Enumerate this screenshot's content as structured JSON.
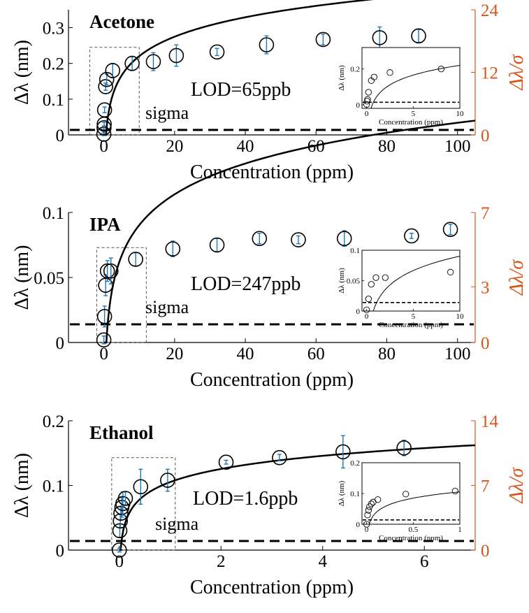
{
  "colors": {
    "axis": "#000000",
    "right_axis": "#d95319",
    "errorbar": "#1f77b4",
    "fit": "#000000"
  },
  "chart_data": [
    {
      "type": "scatter",
      "title": "Acetone",
      "lod_label": "LOD=65ppb",
      "sigma_label": "sigma",
      "xlabel": "Concentration (ppm)",
      "ylabel": "Δλ (nm)",
      "ylabel_right": "Δλ/σ",
      "xlim": [
        -10,
        105
      ],
      "ylim": [
        0,
        0.35
      ],
      "xticks": [
        0,
        20,
        40,
        60,
        80,
        100
      ],
      "xtick_labels": [
        "0",
        "20",
        "40",
        "60",
        "80",
        "100"
      ],
      "yticks": [
        0,
        0.1,
        0.2,
        0.3
      ],
      "ytick_labels": [
        "0",
        "0.1",
        "0.2",
        "0.3"
      ],
      "right_ylim": [
        0,
        24
      ],
      "right_yticks": [
        0,
        12,
        24
      ],
      "right_ytick_labels": [
        "0",
        "12",
        "24"
      ],
      "sigma_level": 0.014,
      "dashed_box": {
        "x": [
          -4,
          10
        ],
        "y": [
          0,
          0.245
        ]
      },
      "fit": {
        "a": 0.0785,
        "b": 0.0395
      },
      "points": [
        {
          "x": 0,
          "y": 0.002,
          "err": 0.004
        },
        {
          "x": 0.05,
          "y": 0.02,
          "err": 0.005
        },
        {
          "x": 0.1,
          "y": 0.03,
          "err": 0.005
        },
        {
          "x": 0.2,
          "y": 0.07,
          "err": 0.008
        },
        {
          "x": 0.5,
          "y": 0.135,
          "err": 0.01
        },
        {
          "x": 0.8,
          "y": 0.155,
          "err": 0.015
        },
        {
          "x": 2.5,
          "y": 0.18,
          "err": 0.02
        },
        {
          "x": 8,
          "y": 0.2,
          "err": 0.02
        },
        {
          "x": 14,
          "y": 0.205,
          "err": 0.025
        },
        {
          "x": 20.5,
          "y": 0.222,
          "err": 0.03
        },
        {
          "x": 32,
          "y": 0.232,
          "err": 0.01
        },
        {
          "x": 46,
          "y": 0.252,
          "err": 0.025
        },
        {
          "x": 62,
          "y": 0.267,
          "err": 0.015
        },
        {
          "x": 78,
          "y": 0.272,
          "err": 0.03
        },
        {
          "x": 89,
          "y": 0.277,
          "err": 0.018
        }
      ],
      "inset": {
        "xlabel": "Concentration (ppm)",
        "ylabel": "Δλ (nm)",
        "xlim": [
          -0.5,
          10
        ],
        "ylim": [
          -0.02,
          0.32
        ],
        "xticks": [
          0,
          5,
          10
        ],
        "xtick_labels": [
          "0",
          "5",
          "10"
        ],
        "yticks": [
          0,
          0.2
        ],
        "ytick_labels": [
          "0",
          "0.2"
        ],
        "sigma_level": 0.014,
        "fit": {
          "a": 0.0785,
          "b": 0.0395
        },
        "points": [
          {
            "x": 0,
            "y": 0.002
          },
          {
            "x": 0.05,
            "y": 0.02
          },
          {
            "x": 0.1,
            "y": 0.03
          },
          {
            "x": 0.2,
            "y": 0.07
          },
          {
            "x": 0.5,
            "y": 0.135
          },
          {
            "x": 0.8,
            "y": 0.155
          },
          {
            "x": 2.5,
            "y": 0.18
          },
          {
            "x": 8,
            "y": 0.2
          }
        ]
      }
    },
    {
      "type": "scatter",
      "title": "IPA",
      "lod_label": "LOD=247ppb",
      "sigma_label": "sigma",
      "xlabel": "Concentration (ppm)",
      "ylabel": "Δλ (nm)",
      "ylabel_right": "Δλ/σ",
      "xlim": [
        -10,
        105
      ],
      "ylim": [
        0,
        0.1
      ],
      "xticks": [
        0,
        20,
        40,
        60,
        80,
        100
      ],
      "xtick_labels": [
        "0",
        "20",
        "40",
        "60",
        "80",
        "100"
      ],
      "yticks": [
        0,
        0.05,
        0.1
      ],
      "ytick_labels": [
        "0",
        "0.05",
        "0.1"
      ],
      "right_ylim": [
        0,
        7
      ],
      "right_yticks": [
        0,
        3,
        7
      ],
      "right_ytick_labels": [
        "0",
        "3",
        "7"
      ],
      "sigma_level": 0.014,
      "dashed_box": {
        "x": [
          -2,
          12
        ],
        "y": [
          0,
          0.073
        ]
      },
      "fit": {
        "a": 0.0342,
        "b": 0.0115
      },
      "points": [
        {
          "x": 0,
          "y": 0.002,
          "err": 0.003
        },
        {
          "x": 0.2,
          "y": 0.02,
          "err": 0.008
        },
        {
          "x": 0.5,
          "y": 0.044,
          "err": 0.008
        },
        {
          "x": 1,
          "y": 0.055,
          "err": 0.008
        },
        {
          "x": 2,
          "y": 0.055,
          "err": 0.01
        },
        {
          "x": 9,
          "y": 0.064,
          "err": 0.005
        },
        {
          "x": 19.5,
          "y": 0.072,
          "err": 0.006
        },
        {
          "x": 32,
          "y": 0.075,
          "err": 0.005
        },
        {
          "x": 44,
          "y": 0.08,
          "err": 0.004
        },
        {
          "x": 55,
          "y": 0.079,
          "err": 0.003
        },
        {
          "x": 68,
          "y": 0.08,
          "err": 0.006
        },
        {
          "x": 87,
          "y": 0.082,
          "err": 0.002
        },
        {
          "x": 98,
          "y": 0.087,
          "err": 0.004
        }
      ],
      "inset": {
        "xlabel": "Concentration (ppm)",
        "ylabel": "Δλ (nm)",
        "xlim": [
          -0.5,
          10
        ],
        "ylim": [
          0,
          0.1
        ],
        "xticks": [
          0,
          5,
          10
        ],
        "xtick_labels": [
          "0",
          "5",
          "10"
        ],
        "yticks": [
          0,
          0.05,
          0.1
        ],
        "ytick_labels": [
          "0",
          "0.05",
          "0.1"
        ],
        "sigma_level": 0.014,
        "fit": {
          "a": 0.0342,
          "b": 0.0115
        },
        "points": [
          {
            "x": 0,
            "y": 0.002
          },
          {
            "x": 0.2,
            "y": 0.02
          },
          {
            "x": 0.5,
            "y": 0.044
          },
          {
            "x": 1,
            "y": 0.055
          },
          {
            "x": 2,
            "y": 0.055
          },
          {
            "x": 9,
            "y": 0.064
          }
        ]
      }
    },
    {
      "type": "scatter",
      "title": "Ethanol",
      "lod_label": "LOD=1.6ppb",
      "sigma_label": "sigma",
      "xlabel": "Concentration (ppm)",
      "ylabel": "Δλ (nm)",
      "ylabel_right": "Δλ/σ",
      "xlim": [
        -1,
        7
      ],
      "ylim": [
        0,
        0.2
      ],
      "xticks": [
        0,
        2,
        4,
        6
      ],
      "xtick_labels": [
        "0",
        "2",
        "4",
        "6"
      ],
      "yticks": [
        0,
        0.1,
        0.2
      ],
      "ytick_labels": [
        "0",
        "0.1",
        "0.2"
      ],
      "right_ylim": [
        0,
        14
      ],
      "right_yticks": [
        0,
        7,
        14
      ],
      "right_ytick_labels": [
        "0",
        "7",
        "14"
      ],
      "sigma_level": 0.014,
      "dashed_box": {
        "x": [
          -0.15,
          1.1
        ],
        "y": [
          0,
          0.143
        ]
      },
      "fit": {
        "a": 0.0293,
        "b": 0.1052
      },
      "points": [
        {
          "x": 0,
          "y": 0.0,
          "err": 0.003
        },
        {
          "x": 0.01,
          "y": 0.03,
          "err": 0.01
        },
        {
          "x": 0.02,
          "y": 0.045,
          "err": 0.01
        },
        {
          "x": 0.03,
          "y": 0.057,
          "err": 0.01
        },
        {
          "x": 0.05,
          "y": 0.066,
          "err": 0.015
        },
        {
          "x": 0.07,
          "y": 0.072,
          "err": 0.018
        },
        {
          "x": 0.12,
          "y": 0.08,
          "err": 0.01
        },
        {
          "x": 0.42,
          "y": 0.098,
          "err": 0.027
        },
        {
          "x": 0.95,
          "y": 0.108,
          "err": 0.017
        },
        {
          "x": 2.1,
          "y": 0.136,
          "err": 0.003
        },
        {
          "x": 3.15,
          "y": 0.143,
          "err": 0.005
        },
        {
          "x": 4.4,
          "y": 0.152,
          "err": 0.025
        },
        {
          "x": 5.6,
          "y": 0.158,
          "err": 0.012
        }
      ],
      "inset": {
        "xlabel": "Concentration (ppm)",
        "ylabel": "Δλ (nm)",
        "xlim": [
          -0.05,
          1
        ],
        "ylim": [
          0,
          0.2
        ],
        "xticks": [
          0,
          0.5,
          1
        ],
        "xtick_labels": [
          "0",
          "0.5",
          "1"
        ],
        "yticks": [
          0,
          0.1,
          0.2
        ],
        "ytick_labels": [
          "0",
          "0.1",
          "0.2"
        ],
        "sigma_level": 0.014,
        "fit": {
          "a": 0.0293,
          "b": 0.1052
        },
        "points": [
          {
            "x": 0,
            "y": 0.0
          },
          {
            "x": 0.01,
            "y": 0.03
          },
          {
            "x": 0.02,
            "y": 0.045
          },
          {
            "x": 0.03,
            "y": 0.057
          },
          {
            "x": 0.05,
            "y": 0.066
          },
          {
            "x": 0.07,
            "y": 0.072
          },
          {
            "x": 0.12,
            "y": 0.08
          },
          {
            "x": 0.42,
            "y": 0.098
          },
          {
            "x": 0.95,
            "y": 0.108
          }
        ]
      }
    }
  ]
}
